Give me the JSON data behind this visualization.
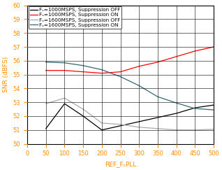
{
  "title": "",
  "xlabel": "REF_FₛPLL",
  "ylabel": "SNR (dBFS)",
  "xlim": [
    0,
    500
  ],
  "ylim": [
    50,
    60
  ],
  "xticks": [
    0,
    50,
    100,
    150,
    200,
    250,
    300,
    350,
    400,
    450,
    500
  ],
  "yticks": [
    50,
    51,
    52,
    53,
    54,
    55,
    56,
    57,
    58,
    59,
    60
  ],
  "lines": [
    {
      "label": "Fₛ=1000MSPS, Suppression OFF",
      "color": "#000000",
      "x": [
        50,
        100,
        150,
        200,
        250,
        300,
        350,
        400,
        450,
        500
      ],
      "y": [
        51.1,
        52.9,
        52.0,
        51.0,
        51.3,
        51.6,
        51.9,
        52.2,
        52.6,
        52.8
      ]
    },
    {
      "label": "Fₛ=1000MSPS, Suppression ON",
      "color": "#ff0000",
      "x": [
        50,
        100,
        150,
        200,
        250,
        300,
        350,
        400,
        450,
        500
      ],
      "y": [
        55.3,
        55.3,
        55.2,
        55.1,
        55.2,
        55.6,
        55.9,
        56.3,
        56.7,
        57.0
      ]
    },
    {
      "label": "Fₛ=1600MSPS, Suppression OFF",
      "color": "#aaaaaa",
      "x": [
        50,
        100,
        150,
        200,
        250,
        300,
        350,
        400,
        450,
        500
      ],
      "y": [
        52.9,
        53.3,
        52.5,
        51.5,
        51.4,
        51.2,
        51.1,
        51.0,
        51.0,
        51.05
      ]
    },
    {
      "label": "Fₛ=1600MSPS, Suppression ON",
      "color": "#336677",
      "x": [
        50,
        100,
        150,
        200,
        250,
        300,
        350,
        400,
        450,
        500
      ],
      "y": [
        55.9,
        55.85,
        55.65,
        55.35,
        54.85,
        54.2,
        53.4,
        52.95,
        52.55,
        52.45
      ]
    }
  ],
  "legend_fontsize": 5.2,
  "tick_fontsize": 6,
  "label_fontsize": 6.5,
  "tick_color": "#ff8c00",
  "label_color": "#ff8c00",
  "background_color": "#ffffff"
}
